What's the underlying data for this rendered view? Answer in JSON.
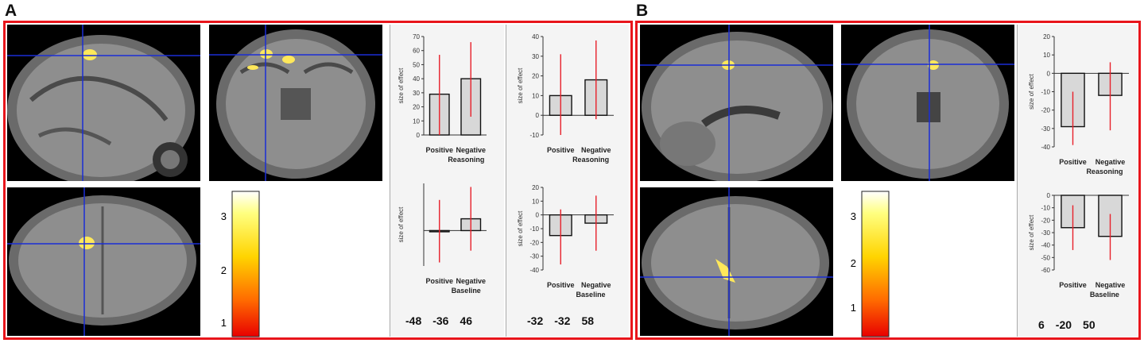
{
  "panels": [
    {
      "label": "A",
      "colorbar_ticks": [
        "3",
        "2",
        "1"
      ],
      "coords_1": [
        "-48",
        "-36",
        "46"
      ],
      "coords_2": [
        "-32",
        "-32",
        "58"
      ]
    },
    {
      "label": "B",
      "colorbar_ticks": [
        "3",
        "2",
        "1"
      ],
      "coords_1": [
        "6",
        "-20",
        "50"
      ]
    }
  ],
  "colors": {
    "frame": "#e8151b",
    "crosshair": "#1a2dd6",
    "bar_fill": "#d8d8d8",
    "error": "#e8202a",
    "activation": "#ffe85a"
  },
  "chart_data": [
    {
      "type": "bar",
      "panel": "A",
      "ylabel": "size of effect",
      "categories": [
        "Positive",
        "Negative"
      ],
      "xlabel": "Reasoning",
      "values": [
        29,
        40
      ],
      "errors_low": [
        0,
        13
      ],
      "errors_high": [
        57,
        66
      ],
      "ylim": [
        0,
        70
      ],
      "ticks": [
        0,
        10,
        20,
        30,
        40,
        50,
        60,
        70
      ]
    },
    {
      "type": "bar",
      "panel": "A",
      "ylabel": "size of effect",
      "categories": [
        "Positive",
        "Negative"
      ],
      "xlabel": "Baseline",
      "values": [
        -1,
        10
      ],
      "errors_low": [
        -27,
        -17
      ],
      "errors_high": [
        26,
        37
      ],
      "ylim": [
        -30,
        40
      ],
      "ticks": []
    },
    {
      "type": "bar",
      "panel": "A",
      "ylabel": "size of effect",
      "categories": [
        "Positive",
        "Negative"
      ],
      "xlabel": "Reasoning",
      "values": [
        10,
        18
      ],
      "errors_low": [
        -10,
        -2
      ],
      "errors_high": [
        31,
        38
      ],
      "ylim": [
        -10,
        40
      ],
      "ticks": [
        -10,
        0,
        10,
        20,
        30,
        40
      ]
    },
    {
      "type": "bar",
      "panel": "A",
      "ylabel": "size of effect",
      "categories": [
        "Positive",
        "Negative"
      ],
      "xlabel": "Baseline",
      "values": [
        -15,
        -6
      ],
      "errors_low": [
        -36,
        -26
      ],
      "errors_high": [
        4,
        14
      ],
      "ylim": [
        -40,
        20
      ],
      "ticks": [
        -40,
        -30,
        -20,
        -10,
        0,
        10,
        20
      ]
    },
    {
      "type": "bar",
      "panel": "B",
      "ylabel": "size of effect",
      "categories": [
        "Positive",
        "Negative"
      ],
      "xlabel": "Reasoning",
      "values": [
        -29,
        -12
      ],
      "errors_low": [
        -39,
        -31
      ],
      "errors_high": [
        -10,
        6
      ],
      "ylim": [
        -40,
        20
      ],
      "ticks": [
        -40,
        -30,
        -20,
        -10,
        0,
        10,
        20
      ]
    },
    {
      "type": "bar",
      "panel": "B",
      "ylabel": "size of effect",
      "categories": [
        "Positive",
        "Negative"
      ],
      "xlabel": "Baseline",
      "values": [
        -26,
        -33
      ],
      "errors_low": [
        -44,
        -52
      ],
      "errors_high": [
        -8,
        -15
      ],
      "ylim": [
        -60,
        0
      ],
      "ticks": [
        -60,
        -50,
        -40,
        -30,
        -20,
        -10,
        0
      ]
    }
  ]
}
